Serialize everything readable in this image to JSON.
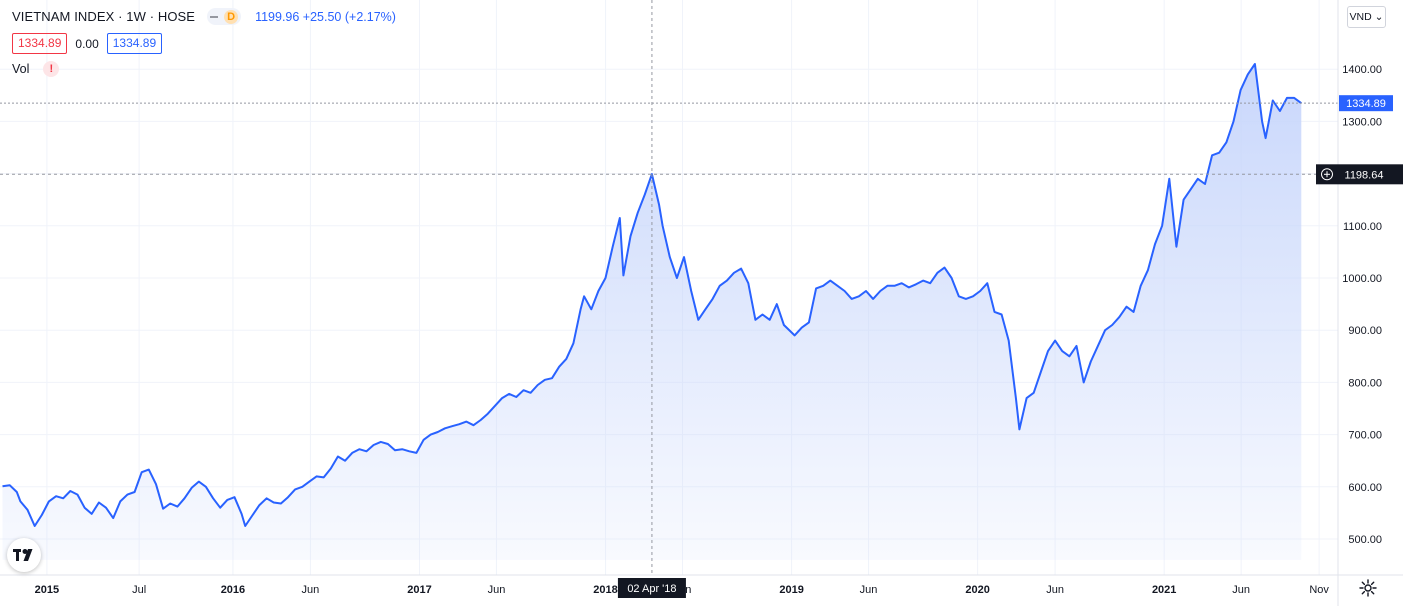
{
  "legend": {
    "title": "VIETNAM INDEX · 1W · HOSE",
    "interval_badge": "D",
    "quote": "1199.96 +25.50 (+2.17%)",
    "value_red": "1334.89",
    "value_zero": "0.00",
    "value_blue": "1334.89",
    "vol_label": "Vol",
    "vol_warning": "!"
  },
  "currency": "VND ⌄",
  "crosshair": {
    "price_label": "1198.64",
    "date_label": "02 Apr '18"
  },
  "last_price_label": "1334.89",
  "colors": {
    "line": "#2962ff",
    "fill_top": "#c6d5fb",
    "label_blue": "#2962ff",
    "crosshair_label": "#131722",
    "grid": "#f0f3fa"
  },
  "chart_data": {
    "type": "area",
    "title": "VIETNAM INDEX · 1W · HOSE",
    "ylim": [
      460,
      1440
    ],
    "y_ticks": [
      500,
      600,
      700,
      800,
      900,
      1000,
      1100,
      1200,
      1300,
      1400
    ],
    "y_tick_labels": [
      "500.00",
      "600.00",
      "700.00",
      "800.00",
      "900.00",
      "1000.00",
      "1100.00",
      "1200.00",
      "1300.00",
      "1400.00"
    ],
    "x_ticks": [
      {
        "date": "2015-01-01",
        "label": "2015",
        "major": true
      },
      {
        "date": "2015-07-01",
        "label": "Jul",
        "major": false
      },
      {
        "date": "2016-01-01",
        "label": "2016",
        "major": true
      },
      {
        "date": "2016-06-01",
        "label": "Jun",
        "major": false
      },
      {
        "date": "2017-01-01",
        "label": "2017",
        "major": true
      },
      {
        "date": "2017-06-01",
        "label": "Jun",
        "major": false
      },
      {
        "date": "2018-01-01",
        "label": "2018",
        "major": true
      },
      {
        "date": "2018-06-01",
        "label": "Jun",
        "major": false
      },
      {
        "date": "2019-01-01",
        "label": "2019",
        "major": true
      },
      {
        "date": "2019-06-01",
        "label": "Jun",
        "major": false
      },
      {
        "date": "2020-01-01",
        "label": "2020",
        "major": true
      },
      {
        "date": "2020-06-01",
        "label": "Jun",
        "major": false
      },
      {
        "date": "2021-01-01",
        "label": "2021",
        "major": true
      },
      {
        "date": "2021-06-01",
        "label": "Jun",
        "major": false
      },
      {
        "date": "2021-11-01",
        "label": "Nov",
        "major": false
      }
    ],
    "grid": true,
    "series": [
      {
        "points": [
          [
            "2014-10-06",
            601
          ],
          [
            "2014-10-20",
            603
          ],
          [
            "2014-11-03",
            590
          ],
          [
            "2014-11-10",
            572
          ],
          [
            "2014-11-24",
            556
          ],
          [
            "2014-12-08",
            525
          ],
          [
            "2014-12-22",
            546
          ],
          [
            "2015-01-05",
            572
          ],
          [
            "2015-01-19",
            582
          ],
          [
            "2015-02-02",
            578
          ],
          [
            "2015-02-16",
            592
          ],
          [
            "2015-03-02",
            585
          ],
          [
            "2015-03-16",
            560
          ],
          [
            "2015-03-30",
            548
          ],
          [
            "2015-04-13",
            570
          ],
          [
            "2015-04-27",
            560
          ],
          [
            "2015-05-11",
            540
          ],
          [
            "2015-05-25",
            572
          ],
          [
            "2015-06-08",
            585
          ],
          [
            "2015-06-22",
            590
          ],
          [
            "2015-07-06",
            628
          ],
          [
            "2015-07-20",
            633
          ],
          [
            "2015-08-03",
            605
          ],
          [
            "2015-08-17",
            558
          ],
          [
            "2015-08-31",
            568
          ],
          [
            "2015-09-14",
            562
          ],
          [
            "2015-09-28",
            578
          ],
          [
            "2015-10-12",
            598
          ],
          [
            "2015-10-26",
            610
          ],
          [
            "2015-11-09",
            600
          ],
          [
            "2015-11-23",
            578
          ],
          [
            "2015-12-07",
            560
          ],
          [
            "2015-12-21",
            575
          ],
          [
            "2016-01-04",
            580
          ],
          [
            "2016-01-18",
            548
          ],
          [
            "2016-01-25",
            525
          ],
          [
            "2016-02-08",
            545
          ],
          [
            "2016-02-22",
            565
          ],
          [
            "2016-03-07",
            578
          ],
          [
            "2016-03-21",
            570
          ],
          [
            "2016-04-04",
            568
          ],
          [
            "2016-04-18",
            580
          ],
          [
            "2016-05-02",
            595
          ],
          [
            "2016-05-16",
            600
          ],
          [
            "2016-05-30",
            610
          ],
          [
            "2016-06-13",
            620
          ],
          [
            "2016-06-27",
            618
          ],
          [
            "2016-07-11",
            635
          ],
          [
            "2016-07-25",
            658
          ],
          [
            "2016-08-08",
            650
          ],
          [
            "2016-08-22",
            665
          ],
          [
            "2016-09-05",
            672
          ],
          [
            "2016-09-19",
            668
          ],
          [
            "2016-10-03",
            680
          ],
          [
            "2016-10-17",
            686
          ],
          [
            "2016-10-31",
            682
          ],
          [
            "2016-11-14",
            670
          ],
          [
            "2016-11-28",
            672
          ],
          [
            "2016-12-12",
            668
          ],
          [
            "2016-12-26",
            665
          ],
          [
            "2017-01-09",
            690
          ],
          [
            "2017-01-23",
            700
          ],
          [
            "2017-02-06",
            705
          ],
          [
            "2017-02-20",
            712
          ],
          [
            "2017-03-06",
            716
          ],
          [
            "2017-03-20",
            720
          ],
          [
            "2017-04-03",
            725
          ],
          [
            "2017-04-17",
            718
          ],
          [
            "2017-05-01",
            728
          ],
          [
            "2017-05-15",
            740
          ],
          [
            "2017-05-29",
            755
          ],
          [
            "2017-06-12",
            770
          ],
          [
            "2017-06-26",
            778
          ],
          [
            "2017-07-10",
            772
          ],
          [
            "2017-07-24",
            785
          ],
          [
            "2017-08-07",
            780
          ],
          [
            "2017-08-21",
            795
          ],
          [
            "2017-09-04",
            805
          ],
          [
            "2017-09-18",
            808
          ],
          [
            "2017-10-02",
            830
          ],
          [
            "2017-10-16",
            845
          ],
          [
            "2017-10-30",
            875
          ],
          [
            "2017-11-13",
            940
          ],
          [
            "2017-11-20",
            965
          ],
          [
            "2017-12-04",
            940
          ],
          [
            "2017-12-18",
            975
          ],
          [
            "2018-01-01",
            1000
          ],
          [
            "2018-01-15",
            1060
          ],
          [
            "2018-01-29",
            1115
          ],
          [
            "2018-02-05",
            1005
          ],
          [
            "2018-02-19",
            1080
          ],
          [
            "2018-03-05",
            1125
          ],
          [
            "2018-03-19",
            1160
          ],
          [
            "2018-04-02",
            1199
          ],
          [
            "2018-04-16",
            1140
          ],
          [
            "2018-04-23",
            1100
          ],
          [
            "2018-05-07",
            1040
          ],
          [
            "2018-05-21",
            1000
          ],
          [
            "2018-06-04",
            1040
          ],
          [
            "2018-06-18",
            975
          ],
          [
            "2018-07-02",
            920
          ],
          [
            "2018-07-16",
            940
          ],
          [
            "2018-07-30",
            960
          ],
          [
            "2018-08-13",
            985
          ],
          [
            "2018-08-27",
            995
          ],
          [
            "2018-09-10",
            1010
          ],
          [
            "2018-09-24",
            1018
          ],
          [
            "2018-10-08",
            990
          ],
          [
            "2018-10-22",
            920
          ],
          [
            "2018-11-05",
            930
          ],
          [
            "2018-11-19",
            920
          ],
          [
            "2018-12-03",
            950
          ],
          [
            "2018-12-17",
            910
          ],
          [
            "2019-01-07",
            890
          ],
          [
            "2019-01-21",
            905
          ],
          [
            "2019-02-04",
            915
          ],
          [
            "2019-02-18",
            980
          ],
          [
            "2019-03-04",
            985
          ],
          [
            "2019-03-18",
            995
          ],
          [
            "2019-04-01",
            985
          ],
          [
            "2019-04-15",
            975
          ],
          [
            "2019-04-29",
            960
          ],
          [
            "2019-05-13",
            965
          ],
          [
            "2019-05-27",
            975
          ],
          [
            "2019-06-10",
            960
          ],
          [
            "2019-06-24",
            975
          ],
          [
            "2019-07-08",
            985
          ],
          [
            "2019-07-22",
            985
          ],
          [
            "2019-08-05",
            990
          ],
          [
            "2019-08-19",
            982
          ],
          [
            "2019-09-02",
            988
          ],
          [
            "2019-09-16",
            995
          ],
          [
            "2019-09-30",
            990
          ],
          [
            "2019-10-14",
            1010
          ],
          [
            "2019-10-28",
            1020
          ],
          [
            "2019-11-11",
            1000
          ],
          [
            "2019-11-25",
            965
          ],
          [
            "2019-12-09",
            960
          ],
          [
            "2019-12-23",
            965
          ],
          [
            "2020-01-06",
            975
          ],
          [
            "2020-01-20",
            990
          ],
          [
            "2020-02-03",
            935
          ],
          [
            "2020-02-17",
            930
          ],
          [
            "2020-03-02",
            880
          ],
          [
            "2020-03-16",
            770
          ],
          [
            "2020-03-23",
            710
          ],
          [
            "2020-04-06",
            770
          ],
          [
            "2020-04-20",
            780
          ],
          [
            "2020-05-04",
            820
          ],
          [
            "2020-05-18",
            860
          ],
          [
            "2020-06-01",
            880
          ],
          [
            "2020-06-15",
            860
          ],
          [
            "2020-06-29",
            850
          ],
          [
            "2020-07-13",
            870
          ],
          [
            "2020-07-27",
            800
          ],
          [
            "2020-08-10",
            840
          ],
          [
            "2020-08-24",
            870
          ],
          [
            "2020-09-07",
            900
          ],
          [
            "2020-09-21",
            910
          ],
          [
            "2020-10-05",
            925
          ],
          [
            "2020-10-19",
            945
          ],
          [
            "2020-11-02",
            935
          ],
          [
            "2020-11-16",
            985
          ],
          [
            "2020-11-30",
            1015
          ],
          [
            "2020-12-14",
            1065
          ],
          [
            "2020-12-28",
            1100
          ],
          [
            "2021-01-11",
            1190
          ],
          [
            "2021-01-25",
            1060
          ],
          [
            "2021-02-08",
            1150
          ],
          [
            "2021-02-22",
            1170
          ],
          [
            "2021-03-08",
            1190
          ],
          [
            "2021-03-22",
            1180
          ],
          [
            "2021-04-05",
            1235
          ],
          [
            "2021-04-19",
            1240
          ],
          [
            "2021-05-03",
            1260
          ],
          [
            "2021-05-17",
            1300
          ],
          [
            "2021-05-31",
            1360
          ],
          [
            "2021-06-14",
            1390
          ],
          [
            "2021-06-28",
            1410
          ],
          [
            "2021-07-12",
            1300
          ],
          [
            "2021-07-19",
            1268
          ],
          [
            "2021-08-02",
            1340
          ],
          [
            "2021-08-16",
            1320
          ],
          [
            "2021-08-30",
            1345
          ],
          [
            "2021-09-13",
            1345
          ],
          [
            "2021-09-27",
            1334.89
          ]
        ]
      }
    ],
    "crosshair_date": "2018-04-02",
    "crosshair_value": 1198.64,
    "last_value": 1334.89
  }
}
